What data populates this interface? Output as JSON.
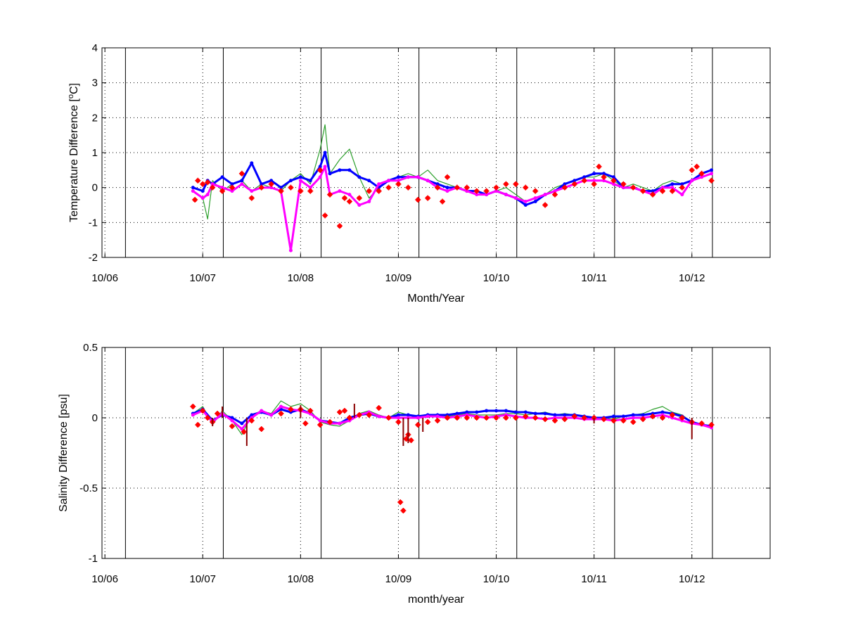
{
  "chart_data": [
    {
      "type": "line",
      "title": "",
      "xlabel": "Month/Year",
      "ylabel": "Temperature Difference [",
      "ylabel_sup": "o",
      "ylabel_end": "C]",
      "xlim": [
        -0.03,
        6.8
      ],
      "ylim": [
        -2,
        4
      ],
      "grid": "dotted",
      "xticks": [
        0,
        1,
        2,
        3,
        4,
        5,
        6
      ],
      "xtick_labels": [
        "10/06",
        "10/07",
        "10/08",
        "10/09",
        "10/10",
        "10/11",
        "10/12"
      ],
      "yticks": [
        -2,
        -1,
        0,
        1,
        2,
        3,
        4
      ],
      "ytick_labels": [
        "-2",
        "-1",
        "0",
        "1",
        "2",
        "3",
        "4"
      ],
      "vlines": [
        0.21,
        1.21,
        2.21,
        3.21,
        4.21,
        5.21,
        6.21
      ],
      "series": [
        {
          "color": "#2ca02c",
          "style": "line",
          "x": [
            0.9,
            1.0,
            1.05,
            1.1,
            1.2,
            1.3,
            1.4,
            1.5,
            1.6,
            1.7,
            1.8,
            1.9,
            2.0,
            2.1,
            2.2,
            2.25,
            2.3,
            2.4,
            2.5,
            2.6,
            2.7,
            2.8,
            2.9,
            3.0,
            3.1,
            3.2,
            3.3,
            3.4,
            3.5,
            3.6,
            3.7,
            3.8,
            3.9,
            4.0,
            4.1,
            4.2,
            4.3,
            4.4,
            4.5,
            4.6,
            4.7,
            4.8,
            4.9,
            5.0,
            5.1,
            5.2,
            5.3,
            5.4,
            5.5,
            5.6,
            5.7,
            5.8,
            5.9,
            6.0,
            6.1,
            6.2
          ],
          "y": [
            -0.1,
            -0.3,
            -0.9,
            0.2,
            -0.1,
            0.1,
            0.2,
            -0.1,
            0.1,
            0.0,
            -0.1,
            0.2,
            0.4,
            0.1,
            1.1,
            1.8,
            0.4,
            0.8,
            1.1,
            0.3,
            -0.3,
            0.0,
            0.2,
            0.3,
            0.4,
            0.3,
            0.5,
            0.2,
            0.1,
            0.0,
            -0.1,
            -0.1,
            -0.2,
            -0.1,
            0.0,
            -0.2,
            -0.4,
            -0.3,
            -0.2,
            0.0,
            0.1,
            0.2,
            0.3,
            0.3,
            0.4,
            0.2,
            0.0,
            0.1,
            0.0,
            -0.1,
            0.1,
            0.2,
            0.1,
            0.2,
            0.4,
            0.5
          ]
        },
        {
          "color": "#0000ff",
          "style": "line-thick",
          "x": [
            0.9,
            1.0,
            1.05,
            1.1,
            1.2,
            1.3,
            1.4,
            1.5,
            1.6,
            1.7,
            1.8,
            1.9,
            2.0,
            2.1,
            2.2,
            2.25,
            2.3,
            2.4,
            2.5,
            2.6,
            2.7,
            2.8,
            2.9,
            3.0,
            3.1,
            3.2,
            3.3,
            3.4,
            3.5,
            3.6,
            3.7,
            3.8,
            3.9,
            4.0,
            4.1,
            4.2,
            4.3,
            4.4,
            4.5,
            4.6,
            4.7,
            4.8,
            4.9,
            5.0,
            5.1,
            5.2,
            5.3,
            5.4,
            5.5,
            5.6,
            5.7,
            5.8,
            5.9,
            6.0,
            6.1,
            6.2
          ],
          "y": [
            0.0,
            -0.1,
            0.2,
            0.1,
            0.3,
            0.1,
            0.2,
            0.7,
            0.1,
            0.2,
            0.0,
            0.2,
            0.3,
            0.2,
            0.6,
            1.0,
            0.4,
            0.5,
            0.5,
            0.3,
            0.2,
            0.0,
            0.2,
            0.3,
            0.3,
            0.3,
            0.2,
            0.1,
            0.0,
            0.0,
            -0.1,
            -0.1,
            -0.2,
            -0.1,
            -0.2,
            -0.3,
            -0.5,
            -0.4,
            -0.2,
            -0.1,
            0.1,
            0.2,
            0.3,
            0.4,
            0.4,
            0.3,
            0.0,
            0.0,
            -0.1,
            -0.1,
            0.0,
            0.1,
            0.1,
            0.2,
            0.4,
            0.5
          ]
        },
        {
          "color": "#ff00ff",
          "style": "line-thick",
          "x": [
            0.9,
            1.0,
            1.05,
            1.1,
            1.2,
            1.3,
            1.4,
            1.5,
            1.6,
            1.7,
            1.8,
            1.9,
            2.0,
            2.1,
            2.2,
            2.25,
            2.3,
            2.4,
            2.5,
            2.6,
            2.7,
            2.8,
            2.9,
            3.0,
            3.1,
            3.2,
            3.3,
            3.4,
            3.5,
            3.6,
            3.7,
            3.8,
            3.9,
            4.0,
            4.1,
            4.2,
            4.3,
            4.4,
            4.5,
            4.6,
            4.7,
            4.8,
            4.9,
            5.0,
            5.1,
            5.2,
            5.3,
            5.4,
            5.5,
            5.6,
            5.7,
            5.8,
            5.9,
            6.0,
            6.1,
            6.2
          ],
          "y": [
            -0.1,
            -0.3,
            -0.2,
            0.1,
            0.0,
            -0.1,
            0.1,
            -0.1,
            0.0,
            0.0,
            -0.1,
            -1.8,
            0.2,
            0.0,
            0.3,
            0.6,
            -0.2,
            -0.1,
            -0.2,
            -0.5,
            -0.4,
            0.1,
            0.2,
            0.2,
            0.3,
            0.3,
            0.2,
            0.0,
            -0.1,
            0.0,
            -0.1,
            -0.2,
            -0.2,
            -0.1,
            -0.2,
            -0.3,
            -0.4,
            -0.3,
            -0.2,
            -0.1,
            0.0,
            0.1,
            0.2,
            0.2,
            0.2,
            0.1,
            0.0,
            0.0,
            -0.1,
            -0.2,
            0.0,
            0.0,
            -0.2,
            0.2,
            0.3,
            0.4
          ]
        },
        {
          "color": "#ff0000",
          "style": "markers",
          "x": [
            0.92,
            0.95,
            1.0,
            1.05,
            1.1,
            1.2,
            1.3,
            1.4,
            1.5,
            1.6,
            1.7,
            1.8,
            1.9,
            2.0,
            2.1,
            2.2,
            2.25,
            2.3,
            2.4,
            2.45,
            2.5,
            2.6,
            2.7,
            2.8,
            2.9,
            3.0,
            3.1,
            3.2,
            3.3,
            3.4,
            3.45,
            3.5,
            3.6,
            3.7,
            3.8,
            3.9,
            4.0,
            4.1,
            4.2,
            4.3,
            4.4,
            4.5,
            4.6,
            4.7,
            4.8,
            4.9,
            5.0,
            5.05,
            5.1,
            5.2,
            5.3,
            5.4,
            5.5,
            5.6,
            5.7,
            5.8,
            5.9,
            6.0,
            6.05,
            6.1,
            6.2
          ],
          "y": [
            -0.35,
            0.2,
            0.1,
            0.15,
            0.0,
            -0.1,
            0.0,
            0.4,
            -0.3,
            0.0,
            0.1,
            -0.1,
            0.0,
            -0.1,
            -0.1,
            0.5,
            -0.8,
            -0.2,
            -1.1,
            -0.3,
            -0.4,
            -0.3,
            -0.1,
            -0.1,
            0.0,
            0.1,
            0.0,
            -0.35,
            -0.3,
            0.0,
            -0.4,
            0.3,
            0.0,
            0.0,
            -0.1,
            -0.1,
            0.0,
            0.1,
            0.1,
            0.0,
            -0.1,
            -0.5,
            -0.2,
            0.0,
            0.1,
            0.2,
            0.1,
            0.6,
            0.3,
            0.2,
            0.1,
            0.0,
            -0.1,
            -0.2,
            -0.1,
            -0.1,
            0.0,
            0.5,
            0.6,
            0.4,
            0.2
          ]
        }
      ]
    },
    {
      "type": "line",
      "title": "",
      "xlabel": "month/year",
      "ylabel": "Salinity Difference [psu]",
      "xlim": [
        -0.03,
        6.8
      ],
      "ylim": [
        -1,
        0.5
      ],
      "grid": "dotted",
      "xticks": [
        0,
        1,
        2,
        3,
        4,
        5,
        6
      ],
      "xtick_labels": [
        "10/06",
        "10/07",
        "10/08",
        "10/09",
        "10/10",
        "10/11",
        "10/12"
      ],
      "yticks": [
        -1,
        -0.5,
        0,
        0.5
      ],
      "ytick_labels": [
        "-1",
        "-0.5",
        "0",
        "0.5"
      ],
      "vlines": [
        0.21,
        1.21,
        2.21,
        3.21,
        4.21,
        5.21,
        6.21
      ],
      "series": [
        {
          "color": "#2ca02c",
          "style": "line",
          "x": [
            0.9,
            1.0,
            1.1,
            1.2,
            1.3,
            1.4,
            1.5,
            1.6,
            1.7,
            1.8,
            1.9,
            2.0,
            2.1,
            2.2,
            2.3,
            2.4,
            2.5,
            2.6,
            2.7,
            2.8,
            2.9,
            3.0,
            3.1,
            3.2,
            3.3,
            3.4,
            3.5,
            3.6,
            3.7,
            3.8,
            3.9,
            4.0,
            4.1,
            4.2,
            4.3,
            4.4,
            4.5,
            4.6,
            4.7,
            4.8,
            4.9,
            5.0,
            5.1,
            5.2,
            5.3,
            5.4,
            5.5,
            5.6,
            5.7,
            5.8,
            5.9,
            6.0,
            6.1,
            6.2
          ],
          "y": [
            0.03,
            0.08,
            -0.05,
            0.05,
            -0.02,
            -0.12,
            0.02,
            0.05,
            0.03,
            0.12,
            0.08,
            0.1,
            0.05,
            -0.03,
            -0.05,
            -0.06,
            -0.02,
            0.03,
            0.05,
            0.02,
            0.0,
            0.04,
            0.02,
            0.0,
            0.01,
            0.02,
            0.01,
            0.02,
            0.03,
            0.02,
            0.02,
            0.02,
            0.03,
            0.03,
            0.02,
            0.03,
            0.04,
            0.02,
            0.03,
            0.02,
            0.01,
            0.0,
            0.0,
            -0.01,
            0.01,
            0.02,
            0.03,
            0.06,
            0.08,
            0.04,
            0.02,
            -0.03,
            -0.05,
            -0.06
          ]
        },
        {
          "color": "#0000ff",
          "style": "line-thick",
          "x": [
            0.9,
            1.0,
            1.1,
            1.2,
            1.3,
            1.4,
            1.5,
            1.6,
            1.7,
            1.8,
            1.9,
            2.0,
            2.1,
            2.2,
            2.3,
            2.4,
            2.5,
            2.6,
            2.7,
            2.8,
            2.9,
            3.0,
            3.1,
            3.2,
            3.3,
            3.4,
            3.5,
            3.6,
            3.7,
            3.8,
            3.9,
            4.0,
            4.1,
            4.2,
            4.3,
            4.4,
            4.5,
            4.6,
            4.7,
            4.8,
            4.9,
            5.0,
            5.1,
            5.2,
            5.3,
            5.4,
            5.5,
            5.6,
            5.7,
            5.8,
            5.9,
            6.0,
            6.1,
            6.2
          ],
          "y": [
            0.03,
            0.06,
            -0.02,
            0.02,
            0.0,
            -0.04,
            0.02,
            0.04,
            0.02,
            0.06,
            0.04,
            0.06,
            0.03,
            -0.02,
            -0.03,
            -0.04,
            0.0,
            0.02,
            0.03,
            0.01,
            0.0,
            0.02,
            0.02,
            0.01,
            0.02,
            0.02,
            0.02,
            0.03,
            0.04,
            0.04,
            0.05,
            0.05,
            0.05,
            0.04,
            0.04,
            0.03,
            0.03,
            0.02,
            0.02,
            0.02,
            0.01,
            0.0,
            0.0,
            0.01,
            0.01,
            0.02,
            0.02,
            0.03,
            0.04,
            0.03,
            0.01,
            -0.03,
            -0.05,
            -0.06
          ]
        },
        {
          "color": "#ff00ff",
          "style": "line-thick",
          "x": [
            0.9,
            1.0,
            1.1,
            1.2,
            1.3,
            1.4,
            1.5,
            1.6,
            1.7,
            1.8,
            1.9,
            2.0,
            2.1,
            2.2,
            2.3,
            2.4,
            2.5,
            2.6,
            2.7,
            2.8,
            2.9,
            3.0,
            3.1,
            3.2,
            3.3,
            3.4,
            3.5,
            3.6,
            3.7,
            3.8,
            3.9,
            4.0,
            4.1,
            4.2,
            4.3,
            4.4,
            4.5,
            4.6,
            4.7,
            4.8,
            4.9,
            5.0,
            5.1,
            5.2,
            5.3,
            5.4,
            5.5,
            5.6,
            5.7,
            5.8,
            5.9,
            6.0,
            6.1,
            6.2
          ],
          "y": [
            0.02,
            0.05,
            -0.03,
            0.03,
            -0.02,
            -0.08,
            0.0,
            0.05,
            0.02,
            0.08,
            0.06,
            0.05,
            0.03,
            -0.02,
            -0.04,
            -0.04,
            -0.02,
            0.02,
            0.04,
            0.01,
            0.0,
            0.0,
            0.0,
            0.0,
            0.01,
            0.01,
            0.0,
            0.01,
            0.02,
            0.01,
            0.0,
            0.01,
            0.02,
            0.01,
            0.0,
            0.0,
            -0.01,
            0.0,
            0.0,
            0.0,
            -0.01,
            -0.01,
            -0.01,
            -0.02,
            -0.01,
            0.0,
            0.0,
            0.01,
            0.02,
            0.0,
            -0.02,
            -0.04,
            -0.05,
            -0.07
          ]
        },
        {
          "color": "#ff0000",
          "style": "markers",
          "x": [
            0.9,
            0.95,
            1.0,
            1.05,
            1.1,
            1.15,
            1.3,
            1.42,
            1.5,
            1.6,
            1.8,
            1.9,
            2.0,
            2.05,
            2.1,
            2.2,
            2.3,
            2.4,
            2.45,
            2.5,
            2.6,
            2.7,
            2.8,
            2.9,
            3.0,
            3.02,
            3.05,
            3.08,
            3.1,
            3.13,
            3.2,
            3.3,
            3.4,
            3.5,
            3.6,
            3.7,
            3.8,
            3.9,
            4.0,
            4.1,
            4.2,
            4.3,
            4.4,
            4.5,
            4.6,
            4.7,
            4.8,
            4.9,
            5.0,
            5.1,
            5.2,
            5.3,
            5.4,
            5.5,
            5.6,
            5.7,
            5.8,
            5.9,
            6.0,
            6.1,
            6.2
          ],
          "y": [
            0.08,
            -0.05,
            0.05,
            0.0,
            -0.03,
            0.03,
            -0.06,
            -0.1,
            -0.02,
            -0.08,
            0.03,
            0.06,
            0.06,
            -0.04,
            0.05,
            -0.05,
            -0.03,
            0.04,
            0.05,
            0.0,
            0.02,
            0.02,
            0.07,
            0.0,
            -0.03,
            -0.6,
            -0.66,
            -0.15,
            -0.12,
            -0.16,
            -0.05,
            -0.03,
            -0.02,
            0.0,
            0.0,
            0.0,
            0.0,
            0.0,
            0.0,
            0.0,
            0.0,
            0.01,
            0.0,
            -0.01,
            -0.02,
            -0.01,
            0.01,
            0.0,
            0.0,
            -0.01,
            -0.02,
            -0.02,
            -0.03,
            -0.01,
            0.01,
            0.0,
            0.02,
            0.0,
            -0.03,
            -0.04,
            -0.05
          ]
        },
        {
          "color": "#8b0000",
          "style": "spikes",
          "x": [
            1.1,
            1.2,
            1.45,
            2.0,
            2.55,
            3.05,
            3.1,
            3.25,
            5.0,
            6.0
          ],
          "y": [
            -0.06,
            0.08,
            -0.2,
            0.09,
            0.1,
            -0.2,
            -0.18,
            -0.1,
            -0.04,
            -0.15
          ]
        }
      ]
    }
  ]
}
